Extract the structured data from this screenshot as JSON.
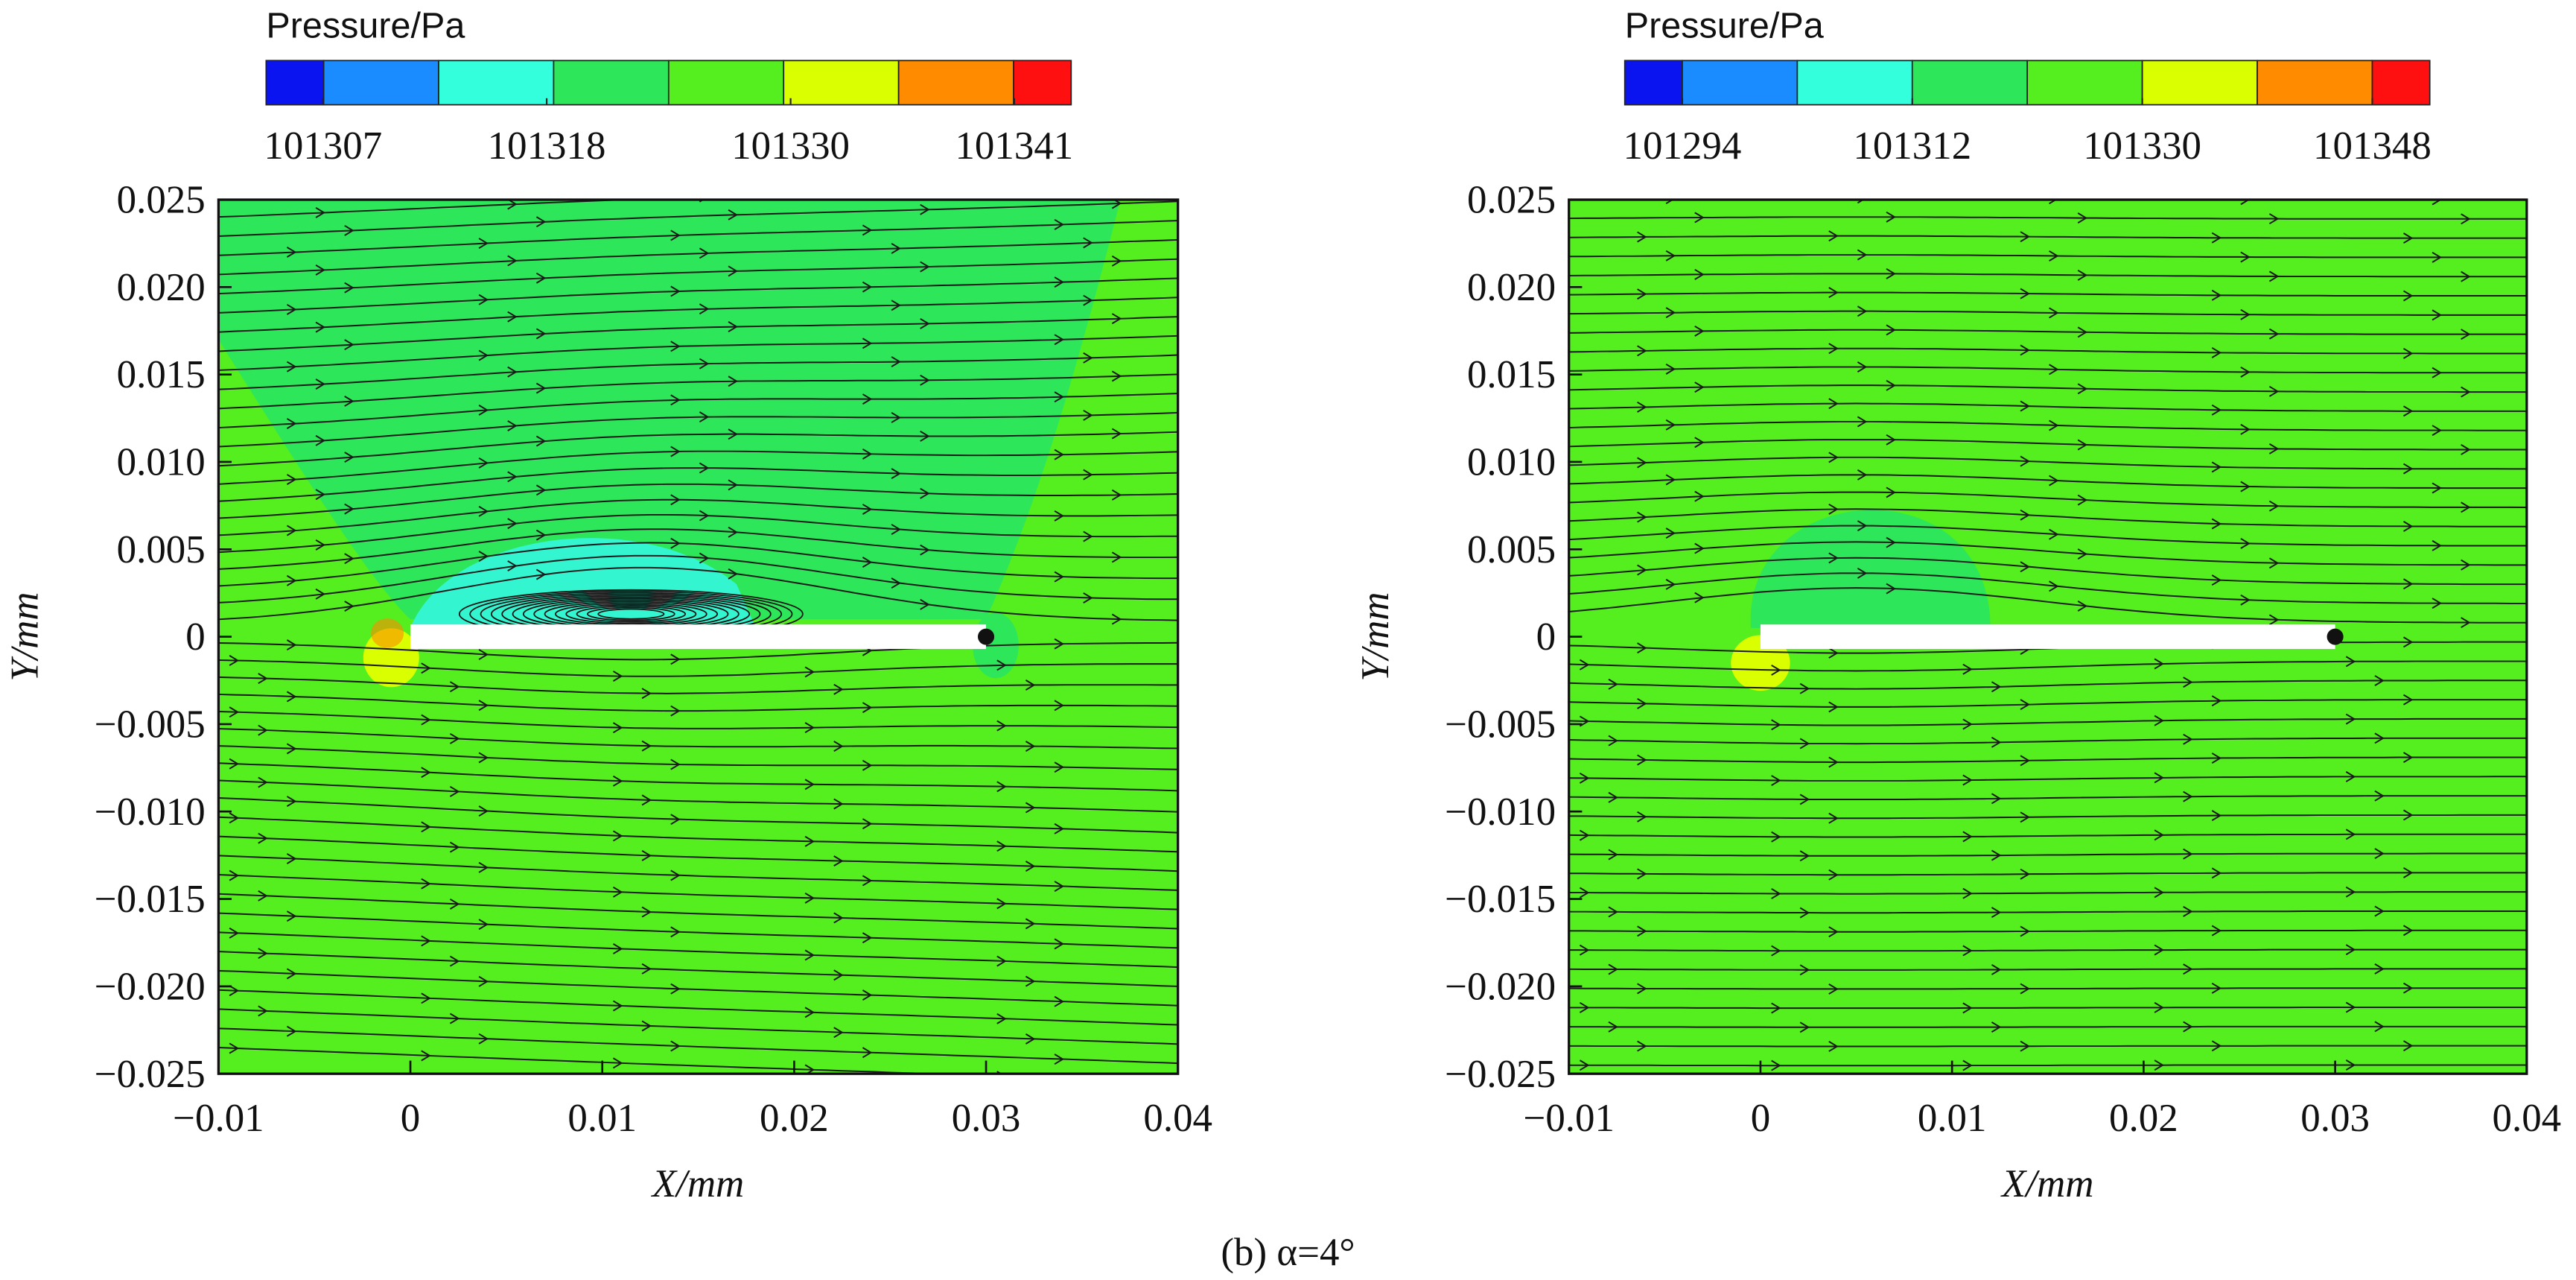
{
  "chart_data": [
    {
      "type": "contour",
      "colorbar_title": "Pressure/Pa",
      "colorbar_colors": [
        "#0a14f0",
        "#1a8cff",
        "#33ffdd",
        "#2ee65a",
        "#55ee1e",
        "#d9ff00",
        "#ff8c00",
        "#ff1010"
      ],
      "colorbar_lim": [
        101304.2,
        101343.8
      ],
      "colorbar_ticks": [
        101307,
        101318,
        101330,
        101341
      ],
      "xlabel": "X/mm",
      "ylabel": "Y/mm",
      "xlim": [
        -0.01,
        0.04
      ],
      "xticks": [
        {
          "value": -0.01,
          "label": "−0.01"
        },
        0,
        0.01,
        0.02,
        0.03,
        0.04
      ],
      "ylim": [
        -0.025,
        0.025
      ],
      "yticks": [
        {
          "value": -0.025,
          "label": "−0.025"
        },
        {
          "value": -0.02,
          "label": "−0.020"
        },
        {
          "value": -0.015,
          "label": "−0.015"
        },
        {
          "value": -0.01,
          "label": "−0.010"
        },
        {
          "value": -0.005,
          "label": "−0.005"
        },
        0,
        0.005,
        {
          "value": 0.01,
          "label": "0.010"
        },
        0.015,
        {
          "value": 0.02,
          "label": "0.020"
        },
        0.025
      ]
    },
    {
      "type": "contour",
      "colorbar_title": "Pressure/Pa",
      "colorbar_colors": [
        "#0a14f0",
        "#1a8cff",
        "#33ffdd",
        "#2ee65a",
        "#55ee1e",
        "#d9ff00",
        "#ff8c00",
        "#ff1010"
      ],
      "colorbar_lim": [
        101289.5,
        101352.5
      ],
      "colorbar_ticks": [
        101294,
        101312,
        101330,
        101348
      ],
      "xlabel": "X/mm",
      "ylabel": "Y/mm",
      "xlim": [
        -0.01,
        0.04
      ],
      "xticks": [
        {
          "value": -0.01,
          "label": "−0.01"
        },
        0,
        0.01,
        0.02,
        0.03,
        0.04
      ],
      "ylim": [
        -0.025,
        0.025
      ],
      "yticks": [
        {
          "value": -0.025,
          "label": "−0.025"
        },
        {
          "value": -0.02,
          "label": "−0.020"
        },
        {
          "value": -0.015,
          "label": "−0.015"
        },
        {
          "value": -0.01,
          "label": "−0.010"
        },
        {
          "value": -0.005,
          "label": "−0.005"
        },
        0,
        0.005,
        {
          "value": 0.01,
          "label": "0.010"
        },
        0.015,
        {
          "value": 0.02,
          "label": "0.020"
        },
        0.025
      ]
    }
  ],
  "caption": "(b) α=4°"
}
